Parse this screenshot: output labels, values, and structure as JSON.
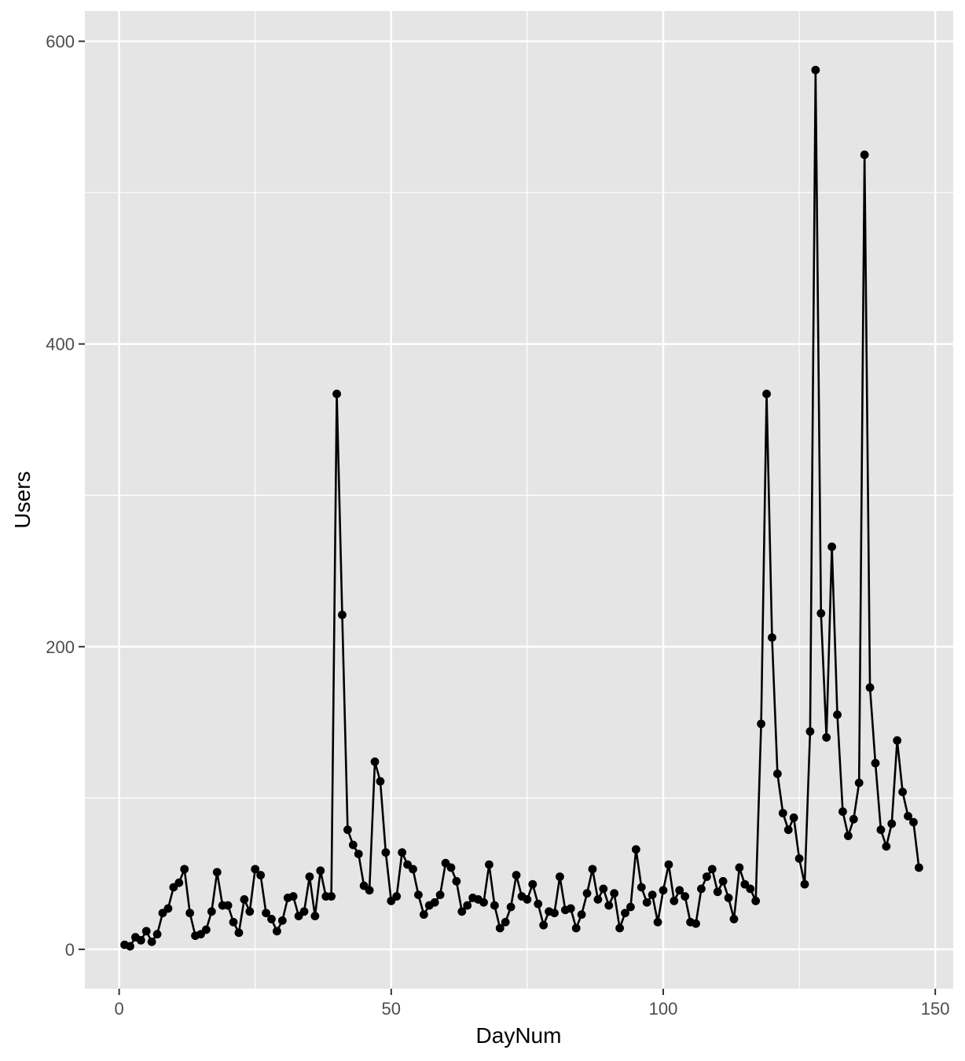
{
  "chart_data": {
    "type": "line",
    "title": "",
    "xlabel": "DayNum",
    "ylabel": "Users",
    "xlim": [
      -6.3,
      153.3
    ],
    "ylim": [
      -26,
      620
    ],
    "x_ticks": [
      0,
      50,
      100,
      150
    ],
    "y_ticks": [
      0,
      200,
      400,
      600
    ],
    "x_tick_labels": [
      "0",
      "50",
      "100",
      "150"
    ],
    "y_tick_labels": [
      "0",
      "200",
      "400",
      "600"
    ],
    "grid": true,
    "markers": true,
    "legend": "none",
    "colors": {
      "panel": "#e5e5e5",
      "grid": "#ffffff",
      "line": "#000000",
      "text": "#4d4d4d"
    },
    "series": [
      {
        "x": [
          1,
          2,
          3,
          4,
          5,
          6,
          7,
          8,
          9,
          10,
          11,
          12,
          13,
          14,
          15,
          16,
          17,
          18,
          19,
          20,
          21,
          22,
          23,
          24,
          25,
          26,
          27,
          28,
          29,
          30,
          31,
          32,
          33,
          34,
          35,
          36,
          37,
          38,
          39,
          40,
          41,
          42,
          43,
          44,
          45,
          46,
          47,
          48,
          49,
          50,
          51,
          52,
          53,
          54,
          55,
          56,
          57,
          58,
          59,
          60,
          61,
          62,
          63,
          64,
          65,
          66,
          67,
          68,
          69,
          70,
          71,
          72,
          73,
          74,
          75,
          76,
          77,
          78,
          79,
          80,
          81,
          82,
          83,
          84,
          85,
          86,
          87,
          88,
          89,
          90,
          91,
          92,
          93,
          94,
          95,
          96,
          97,
          98,
          99,
          100,
          101,
          102,
          103,
          104,
          105,
          106,
          107,
          108,
          109,
          110,
          111,
          112,
          113,
          114,
          115,
          116,
          117,
          118,
          119,
          120,
          121,
          122,
          123,
          124,
          125,
          126,
          127,
          128,
          129,
          130,
          131,
          132,
          133,
          134,
          135,
          136,
          137,
          138,
          139,
          140,
          141,
          142,
          143,
          144,
          145,
          146,
          147
        ],
        "values": [
          3,
          2,
          8,
          6,
          12,
          5,
          10,
          24,
          27,
          41,
          44,
          53,
          24,
          9,
          10,
          13,
          25,
          51,
          29,
          29,
          18,
          11,
          33,
          25,
          53,
          49,
          24,
          20,
          12,
          19,
          34,
          35,
          22,
          25,
          48,
          22,
          52,
          35,
          35,
          367,
          221,
          79,
          69,
          63,
          42,
          39,
          124,
          111,
          64,
          32,
          35,
          64,
          56,
          53,
          36,
          23,
          29,
          31,
          36,
          57,
          54,
          45,
          25,
          29,
          34,
          33,
          31,
          56,
          29,
          14,
          18,
          28,
          49,
          35,
          33,
          43,
          30,
          16,
          25,
          24,
          48,
          26,
          27,
          14,
          23,
          37,
          53,
          33,
          40,
          29,
          37,
          14,
          24,
          28,
          66,
          41,
          31,
          36,
          18,
          39,
          56,
          32,
          39,
          35,
          18,
          17,
          40,
          48,
          53,
          38,
          45,
          34,
          20,
          54,
          43,
          40,
          32,
          149,
          367,
          206,
          116,
          90,
          79,
          87,
          60,
          43,
          144,
          581,
          222,
          140,
          266,
          155,
          91,
          75,
          86,
          110,
          525,
          173,
          123,
          79,
          68,
          83,
          138,
          104,
          88,
          84,
          54
        ]
      }
    ]
  }
}
